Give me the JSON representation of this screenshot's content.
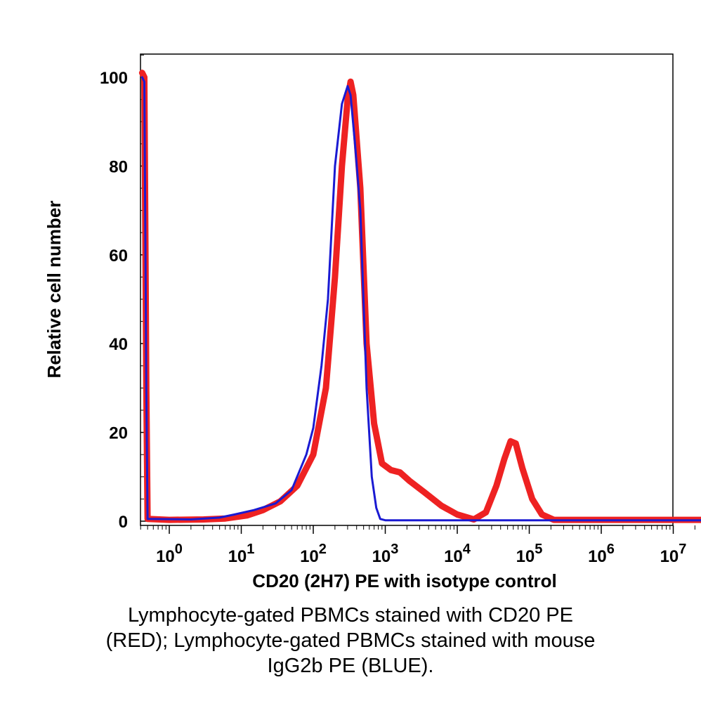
{
  "chart_data": {
    "type": "line",
    "title": "",
    "xlabel": "CD20 (2H7) PE with isotype control",
    "ylabel": "Relative cell number",
    "x_scale": "log",
    "xlim": [
      0.4,
      25000000
    ],
    "ylim": [
      0,
      105
    ],
    "y_ticks": [
      0,
      20,
      40,
      60,
      80,
      100
    ],
    "x_ticks": [
      {
        "value": 1,
        "base": "10",
        "exp": "0"
      },
      {
        "value": 10,
        "base": "10",
        "exp": "1"
      },
      {
        "value": 100,
        "base": "10",
        "exp": "2"
      },
      {
        "value": 1000,
        "base": "10",
        "exp": "3"
      },
      {
        "value": 10000,
        "base": "10",
        "exp": "4"
      },
      {
        "value": 100000,
        "base": "10",
        "exp": "5"
      },
      {
        "value": 1000000,
        "base": "10",
        "exp": "6"
      },
      {
        "value": 10000000,
        "base": "10",
        "exp": "7"
      }
    ],
    "grid": false,
    "series": [
      {
        "color": "#ee2222",
        "points": [
          [
            0.42,
            101
          ],
          [
            0.45,
            100
          ],
          [
            0.48,
            30
          ],
          [
            0.5,
            0.5
          ],
          [
            1,
            0.3
          ],
          [
            3,
            0.4
          ],
          [
            6,
            0.6
          ],
          [
            12,
            1.3
          ],
          [
            20,
            2.5
          ],
          [
            35,
            4.5
          ],
          [
            60,
            8
          ],
          [
            100,
            15
          ],
          [
            150,
            30
          ],
          [
            200,
            55
          ],
          [
            250,
            80
          ],
          [
            300,
            95
          ],
          [
            330,
            99
          ],
          [
            360,
            96
          ],
          [
            450,
            75
          ],
          [
            550,
            40
          ],
          [
            700,
            22
          ],
          [
            900,
            13
          ],
          [
            1200,
            11.5
          ],
          [
            1600,
            11
          ],
          [
            2200,
            9
          ],
          [
            3500,
            6.5
          ],
          [
            6000,
            3.5
          ],
          [
            10000,
            1.5
          ],
          [
            17000,
            0.4
          ],
          [
            25000,
            2
          ],
          [
            35000,
            8
          ],
          [
            45000,
            14
          ],
          [
            55000,
            18
          ],
          [
            65000,
            17.5
          ],
          [
            80000,
            12
          ],
          [
            110000,
            5
          ],
          [
            150000,
            1.5
          ],
          [
            220000,
            0.3
          ],
          [
            1000000,
            0.3
          ],
          [
            25000000,
            0.3
          ]
        ]
      },
      {
        "color": "#1a1ad2",
        "points": [
          [
            0.42,
            100
          ],
          [
            0.45,
            99
          ],
          [
            0.48,
            30
          ],
          [
            0.5,
            0.5
          ],
          [
            2,
            0.4
          ],
          [
            5,
            0.8
          ],
          [
            8,
            1.5
          ],
          [
            15,
            2.5
          ],
          [
            30,
            4
          ],
          [
            50,
            7
          ],
          [
            80,
            15
          ],
          [
            100,
            21
          ],
          [
            130,
            35
          ],
          [
            160,
            50
          ],
          [
            200,
            80
          ],
          [
            250,
            94
          ],
          [
            300,
            98
          ],
          [
            330,
            96
          ],
          [
            380,
            85
          ],
          [
            450,
            70
          ],
          [
            550,
            30
          ],
          [
            650,
            10
          ],
          [
            750,
            3
          ],
          [
            850,
            0.5
          ],
          [
            1000,
            0.2
          ],
          [
            10000,
            0.2
          ],
          [
            25000000,
            0.2
          ]
        ]
      }
    ]
  },
  "caption": {
    "line1": "Lymphocyte-gated PBMCs stained with CD20 PE",
    "line2": "(RED); Lymphocyte-gated PBMCs stained with mouse",
    "line3": "IgG2b PE (BLUE)."
  }
}
